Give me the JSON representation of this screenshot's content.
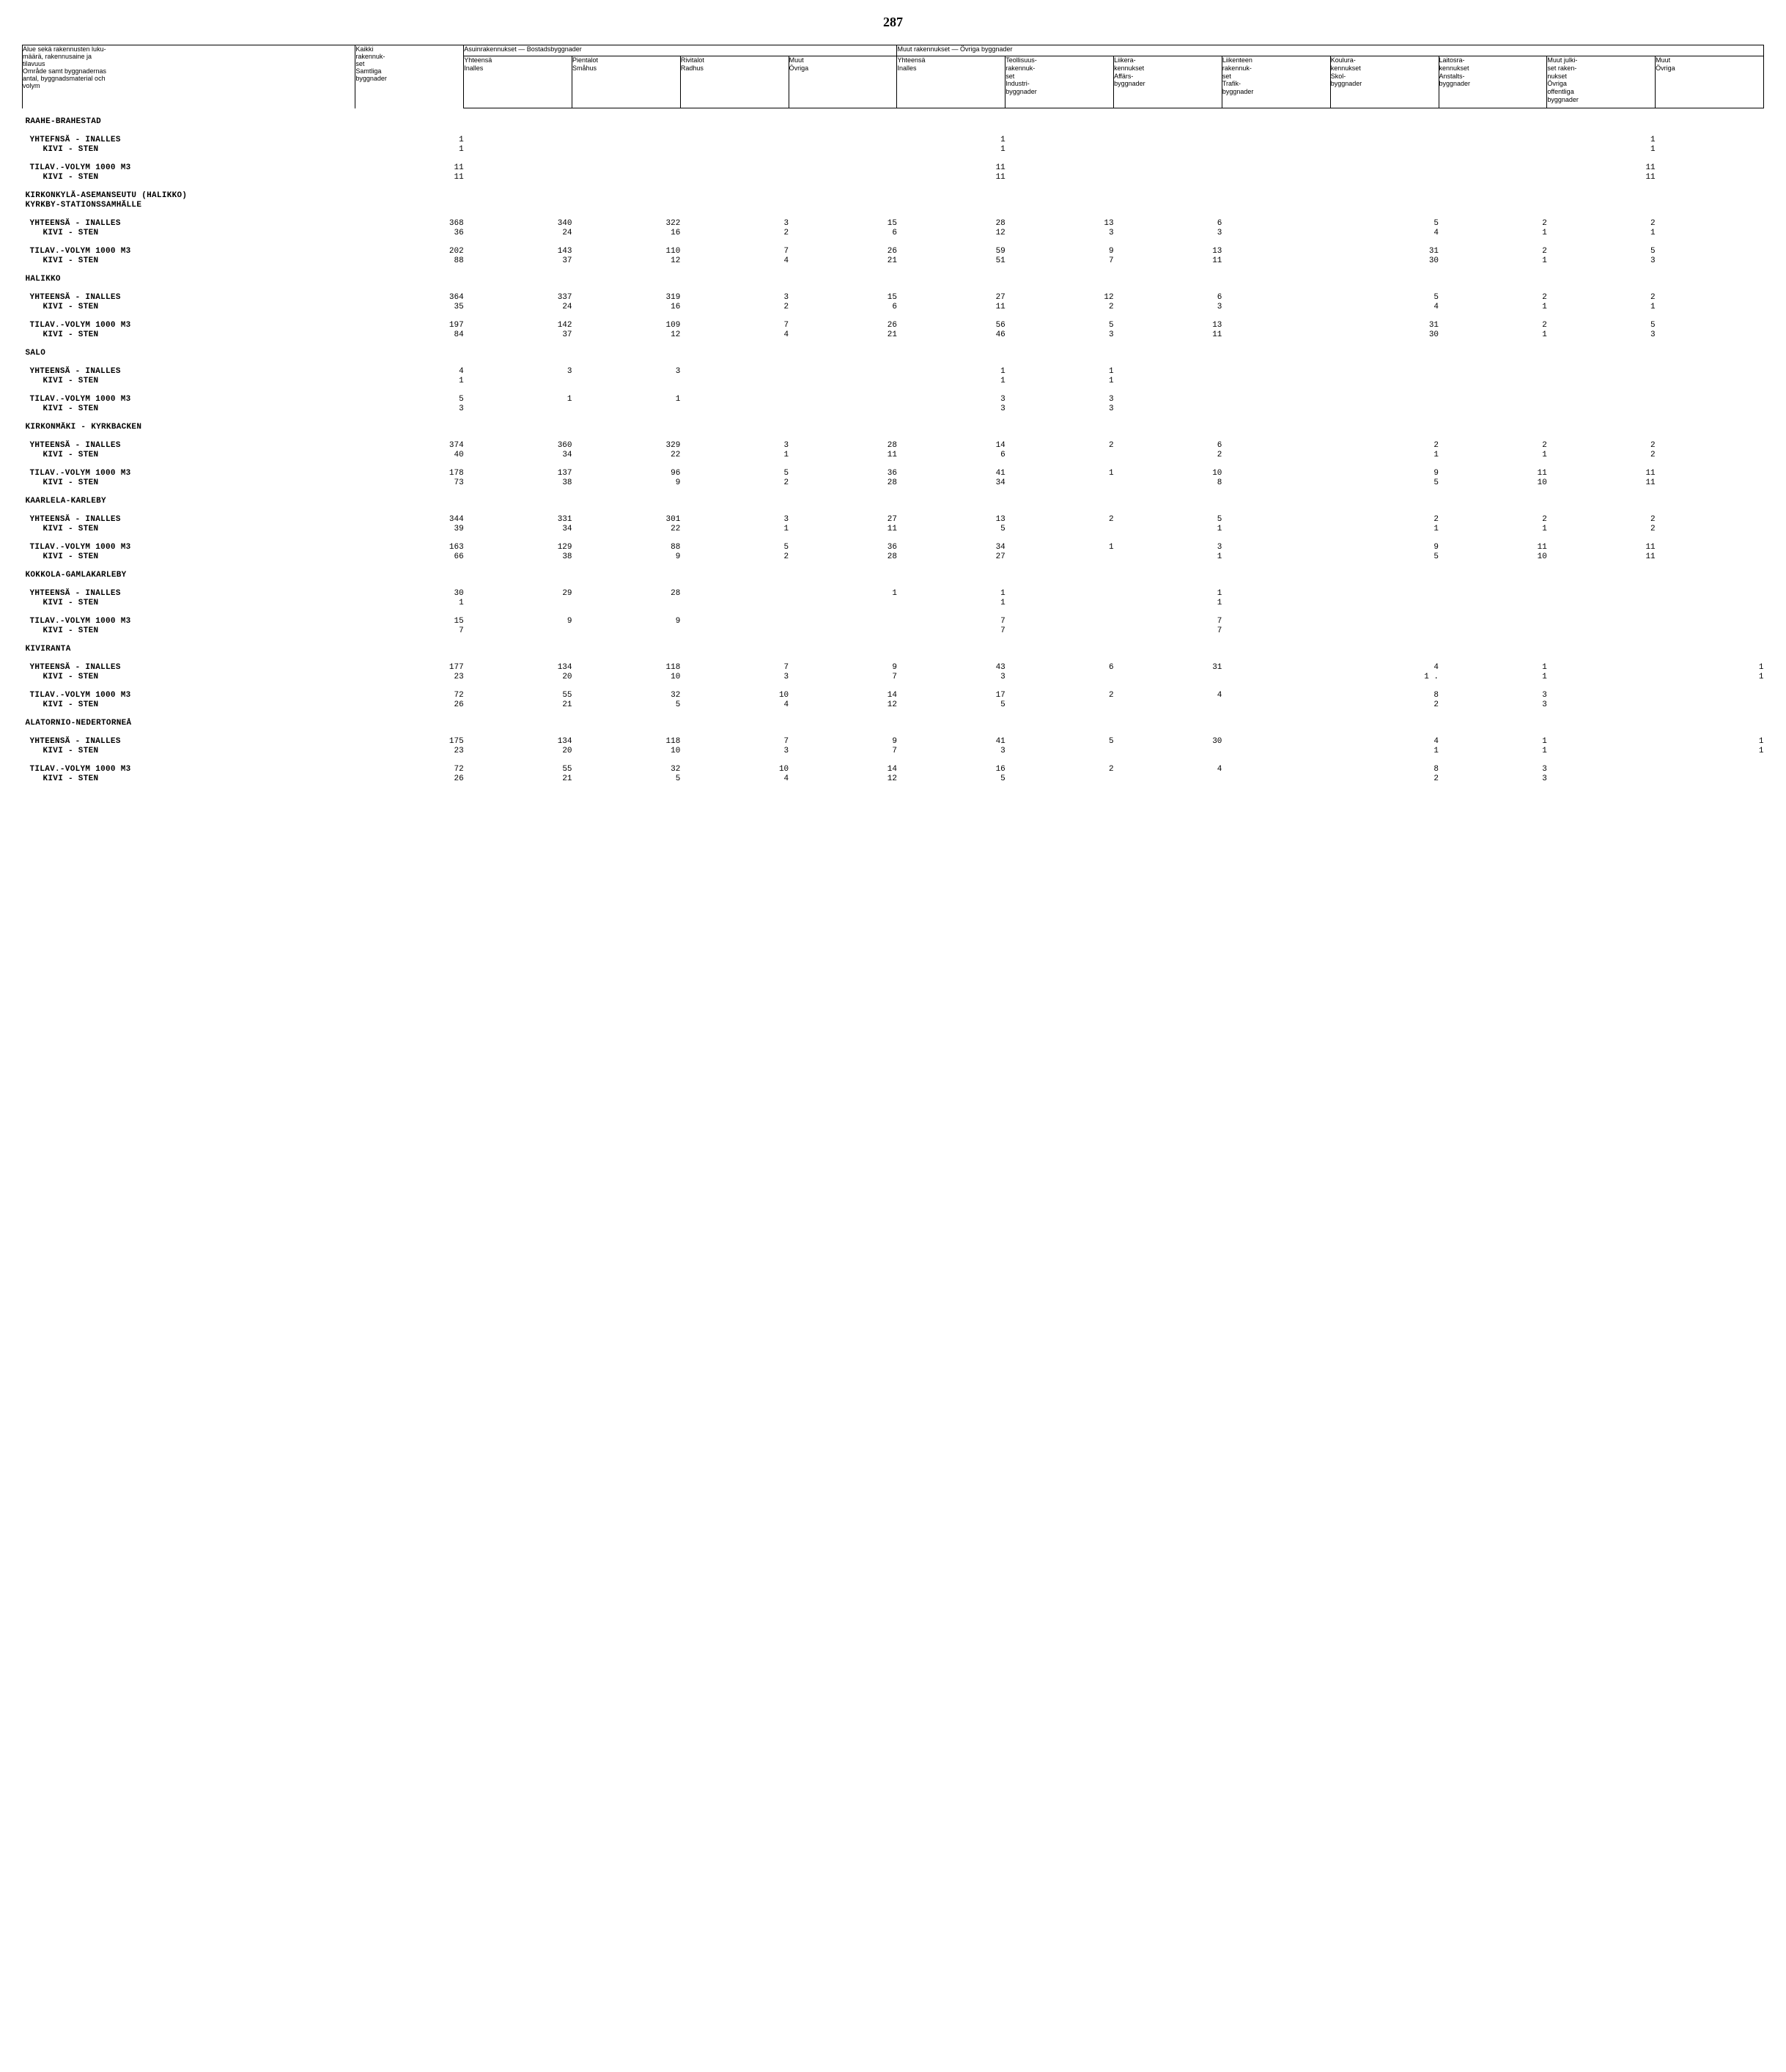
{
  "page_number": "287",
  "header": {
    "col0": "Alue sekä rakennusten luku-\nmäärä, rakennusaine ja\ntilavuus\nOmråde samt byggnadernas\nantal, byggnadsmaterial och\nvolym",
    "col1": "Kaikki\nrakennuk-\nset\nSamtliga\nbyggnader",
    "group_a": "Asuinrakennukset — Bostadsbyggnader",
    "group_b": "Muut rakennukset — Övriga byggnader",
    "a0": "Yhteensä\nInalles",
    "a1": "Pientalot\nSmåhus",
    "a2": "Rivitalot\nRadhus",
    "a3": "Muut\nÖvriga",
    "b0": "Yhteensä\nInalles",
    "b1": "Teollisuus-\nrakennuk-\nset\nIndustri-\nbyggnader",
    "b2": "Liikera-\nkennukset\nAffärs-\nbyggnader",
    "b3": "Liikenteen\nrakennuk-\nset\nTrafik-\nbyggnader",
    "b4": "Koulura-\nkennukset\nSkol-\nbyggnader",
    "b5": "Laitosra-\nkennukset\nAnstalts-\nbyggnader",
    "b6": "Muut julki-\nset raken-\nnukset\nÖvriga\noffentliga\nbyggnader",
    "b7": "Muut\nÖvriga"
  },
  "labels": {
    "yht": "YHTEENSÄ - INALLES",
    "yhtf": "YHTEFNSÄ - INALLES",
    "kivi": "KIVI - STEN",
    "tilav": "TILAV.-VOLYM 1000 M3"
  },
  "sections": [
    {
      "title": "RAAHE-BRAHESTAD",
      "blocks": [
        {
          "rows": [
            {
              "lbl": "yhtf",
              "v": [
                "1",
                "",
                "",
                "",
                "",
                "1",
                "",
                "",
                "",
                "",
                "",
                "1",
                ""
              ]
            },
            {
              "lbl": "kivi",
              "ind": true,
              "v": [
                "1",
                "",
                "",
                "",
                "",
                "1",
                "",
                "",
                "",
                "",
                "",
                "1",
                ""
              ]
            }
          ]
        },
        {
          "rows": [
            {
              "lbl": "tilav",
              "v": [
                "11",
                "",
                "",
                "",
                "",
                "11",
                "",
                "",
                "",
                "",
                "",
                "11",
                ""
              ]
            },
            {
              "lbl": "kivi",
              "ind": true,
              "v": [
                "11",
                "",
                "",
                "",
                "",
                "11",
                "",
                "",
                "",
                "",
                "",
                "11",
                ""
              ]
            }
          ]
        }
      ]
    },
    {
      "title": "KIRKONKYLÄ-ASEMANSEUTU (HALIKKO)\nKYRKBY-STATIONSSAMHÄLLE",
      "blocks": [
        {
          "rows": [
            {
              "lbl": "yht",
              "v": [
                "368",
                "340",
                "322",
                "3",
                "15",
                "28",
                "13",
                "6",
                "",
                "5",
                "2",
                "2",
                ""
              ]
            },
            {
              "lbl": "kivi",
              "ind": true,
              "v": [
                "36",
                "24",
                "16",
                "2",
                "6",
                "12",
                "3",
                "3",
                "",
                "4",
                "1",
                "1",
                ""
              ]
            }
          ]
        },
        {
          "rows": [
            {
              "lbl": "tilav",
              "v": [
                "202",
                "143",
                "110",
                "7",
                "26",
                "59",
                "9",
                "13",
                "",
                "31",
                "2",
                "5",
                ""
              ]
            },
            {
              "lbl": "kivi",
              "ind": true,
              "v": [
                "88",
                "37",
                "12",
                "4",
                "21",
                "51",
                "7",
                "11",
                "",
                "30",
                "1",
                "3",
                ""
              ]
            }
          ]
        }
      ]
    },
    {
      "title": "HALIKKO",
      "blocks": [
        {
          "rows": [
            {
              "lbl": "yht",
              "v": [
                "364",
                "337",
                "319",
                "3",
                "15",
                "27",
                "12",
                "6",
                "",
                "5",
                "2",
                "2",
                ""
              ]
            },
            {
              "lbl": "kivi",
              "ind": true,
              "v": [
                "35",
                "24",
                "16",
                "2",
                "6",
                "11",
                "2",
                "3",
                "",
                "4",
                "1",
                "1",
                ""
              ]
            }
          ]
        },
        {
          "rows": [
            {
              "lbl": "tilav",
              "v": [
                "197",
                "142",
                "109",
                "7",
                "26",
                "56",
                "5",
                "13",
                "",
                "31",
                "2",
                "5",
                ""
              ]
            },
            {
              "lbl": "kivi",
              "ind": true,
              "v": [
                "84",
                "37",
                "12",
                "4",
                "21",
                "46",
                "3",
                "11",
                "",
                "30",
                "1",
                "3",
                ""
              ]
            }
          ]
        }
      ]
    },
    {
      "title": "SALO",
      "blocks": [
        {
          "rows": [
            {
              "lbl": "yht",
              "v": [
                "4",
                "3",
                "3",
                "",
                "",
                "1",
                "1",
                "",
                "",
                "",
                "",
                "",
                ""
              ]
            },
            {
              "lbl": "kivi",
              "ind": true,
              "v": [
                "1",
                "",
                "",
                "",
                "",
                "1",
                "1",
                "",
                "",
                "",
                "",
                "",
                ""
              ]
            }
          ]
        },
        {
          "rows": [
            {
              "lbl": "tilav",
              "v": [
                "5",
                "1",
                "1",
                "",
                "",
                "3",
                "3",
                "",
                "",
                "",
                "",
                "",
                ""
              ]
            },
            {
              "lbl": "kivi",
              "ind": true,
              "v": [
                "3",
                "",
                "",
                "",
                "",
                "3",
                "3",
                "",
                "",
                "",
                "",
                "",
                ""
              ]
            }
          ]
        }
      ]
    },
    {
      "title": "KIRKONMÄKI - KYRKBACKEN",
      "blocks": [
        {
          "rows": [
            {
              "lbl": "yht",
              "v": [
                "374",
                "360",
                "329",
                "3",
                "28",
                "14",
                "2",
                "6",
                "",
                "2",
                "2",
                "2",
                ""
              ]
            },
            {
              "lbl": "kivi",
              "ind": true,
              "v": [
                "40",
                "34",
                "22",
                "1",
                "11",
                "6",
                "",
                "2",
                "",
                "1",
                "1",
                "2",
                ""
              ]
            }
          ]
        },
        {
          "rows": [
            {
              "lbl": "tilav",
              "v": [
                "178",
                "137",
                "96",
                "5",
                "36",
                "41",
                "1",
                "10",
                "",
                "9",
                "11",
                "11",
                ""
              ]
            },
            {
              "lbl": "kivi",
              "ind": true,
              "v": [
                "73",
                "38",
                "9",
                "2",
                "28",
                "34",
                "",
                "8",
                "",
                "5",
                "10",
                "11",
                ""
              ]
            }
          ]
        }
      ]
    },
    {
      "title": "KAARLELA-KARLEBY",
      "blocks": [
        {
          "rows": [
            {
              "lbl": "yht",
              "v": [
                "344",
                "331",
                "301",
                "3",
                "27",
                "13",
                "2",
                "5",
                "",
                "2",
                "2",
                "2",
                ""
              ]
            },
            {
              "lbl": "kivi",
              "ind": true,
              "v": [
                "39",
                "34",
                "22",
                "1",
                "11",
                "5",
                "",
                "1",
                "",
                "1",
                "1",
                "2",
                ""
              ]
            }
          ]
        },
        {
          "rows": [
            {
              "lbl": "tilav",
              "v": [
                "163",
                "129",
                "88",
                "5",
                "36",
                "34",
                "1",
                "3",
                "",
                "9",
                "11",
                "11",
                ""
              ]
            },
            {
              "lbl": "kivi",
              "ind": true,
              "v": [
                "66",
                "38",
                "9",
                "2",
                "28",
                "27",
                "",
                "1",
                "",
                "5",
                "10",
                "11",
                ""
              ]
            }
          ]
        }
      ]
    },
    {
      "title": "KOKKOLA-GAMLAKARLEBY",
      "blocks": [
        {
          "rows": [
            {
              "lbl": "yht",
              "v": [
                "30",
                "29",
                "28",
                "",
                "1",
                "1",
                "",
                "1",
                "",
                "",
                "",
                "",
                ""
              ]
            },
            {
              "lbl": "kivi",
              "ind": true,
              "v": [
                "1",
                "",
                "",
                "",
                "",
                "1",
                "",
                "1",
                "",
                "",
                "",
                "",
                ""
              ]
            }
          ]
        },
        {
          "rows": [
            {
              "lbl": "tilav",
              "v": [
                "15",
                "9",
                "9",
                "",
                "",
                "7",
                "",
                "7",
                "",
                "",
                "",
                "",
                ""
              ]
            },
            {
              "lbl": "kivi",
              "ind": true,
              "v": [
                "7",
                "",
                "",
                "",
                "",
                "7",
                "",
                "7",
                "",
                "",
                "",
                "",
                ""
              ]
            }
          ]
        }
      ]
    },
    {
      "title": "KIVIRANTA",
      "blocks": [
        {
          "rows": [
            {
              "lbl": "yht",
              "v": [
                "177",
                "134",
                "118",
                "7",
                "9",
                "43",
                "6",
                "31",
                "",
                "4",
                "1",
                "",
                "1"
              ]
            },
            {
              "lbl": "kivi",
              "ind": true,
              "v": [
                "23",
                "20",
                "10",
                "3",
                "7",
                "3",
                "",
                "",
                "",
                "1 .",
                "1",
                "",
                "1"
              ]
            }
          ]
        },
        {
          "rows": [
            {
              "lbl": "tilav",
              "v": [
                "72",
                "55",
                "32",
                "10",
                "14",
                "17",
                "2",
                "4",
                "",
                "8",
                "3",
                "",
                ""
              ]
            },
            {
              "lbl": "kivi",
              "ind": true,
              "v": [
                "26",
                "21",
                "5",
                "4",
                "12",
                "5",
                "",
                "",
                "",
                "2",
                "3",
                "",
                ""
              ]
            }
          ]
        }
      ]
    },
    {
      "title": "ALATORNIO-NEDERTORNEÅ",
      "blocks": [
        {
          "rows": [
            {
              "lbl": "yht",
              "v": [
                "175",
                "134",
                "118",
                "7",
                "9",
                "41",
                "5",
                "30",
                "",
                "4",
                "1",
                "",
                "1"
              ]
            },
            {
              "lbl": "kivi",
              "ind": true,
              "v": [
                "23",
                "20",
                "10",
                "3",
                "7",
                "3",
                "",
                "",
                "",
                "1",
                "1",
                "",
                "1"
              ]
            }
          ]
        },
        {
          "rows": [
            {
              "lbl": "tilav",
              "v": [
                "72",
                "55",
                "32",
                "10",
                "14",
                "16",
                "2",
                "4",
                "",
                "8",
                "3",
                "",
                ""
              ]
            },
            {
              "lbl": "kivi",
              "ind": true,
              "v": [
                "26",
                "21",
                "5",
                "4",
                "12",
                "5",
                "",
                "",
                "",
                "2",
                "3",
                "",
                ""
              ]
            }
          ]
        }
      ]
    }
  ]
}
